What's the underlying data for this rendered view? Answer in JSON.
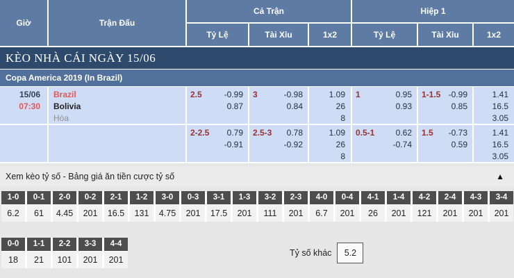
{
  "colors": {
    "header_blue": "#5e7ba4",
    "title_navy": "#2d4a6d",
    "league_blue": "#51709b",
    "row_light_blue": "#cfdcf5",
    "handicap_maroon": "#9c2f2f",
    "accent_red": "#e25757",
    "score_header_gray": "#4d4d4d"
  },
  "header": {
    "time": "Giờ",
    "match": "Trận Đấu",
    "full_time": "Cả Trận",
    "first_half": "Hiệp 1",
    "handicap": "Tỷ Lệ",
    "over_under": "Tài Xỉu",
    "one_x_two": "1x2"
  },
  "section": {
    "title": "KÈO NHÀ CÁI NGÀY 15/06",
    "league": "Copa America 2019 (In Brazil)"
  },
  "match": {
    "date": "15/06",
    "time": "07:30",
    "home": "Brazil",
    "away": "Bolivia",
    "draw": "Hòa"
  },
  "odds_rows": [
    {
      "ft_hdp": {
        "line": "2.5",
        "o1": "-0.99",
        "o2": "0.87"
      },
      "ft_ou": {
        "line": "3",
        "o1": "-0.98",
        "o2": "0.84"
      },
      "ft_1x2": {
        "v1": "1.09",
        "v2": "26",
        "v3": "8"
      },
      "h1_hdp": {
        "line": "1",
        "o1": "0.95",
        "o2": "0.93"
      },
      "h1_ou": {
        "line": "1-1.5",
        "o1": "-0.99",
        "o2": "0.85"
      },
      "h1_1x2": {
        "v1": "1.41",
        "v2": "16.5",
        "v3": "3.05"
      }
    },
    {
      "ft_hdp": {
        "line": "2-2.5",
        "o1": "0.79",
        "o2": "-0.91"
      },
      "ft_ou": {
        "line": "2.5-3",
        "o1": "0.78",
        "o2": "-0.92"
      },
      "ft_1x2": {
        "v1": "1.09",
        "v2": "26",
        "v3": "8"
      },
      "h1_hdp": {
        "line": "0.5-1",
        "o1": "0.62",
        "o2": "-0.74"
      },
      "h1_ou": {
        "line": "1.5",
        "o1": "-0.73",
        "o2": "0.59"
      },
      "h1_1x2": {
        "v1": "1.41",
        "v2": "16.5",
        "v3": "3.05"
      }
    }
  ],
  "score_section": {
    "title": "Xem kèo tỷ số - Bảng giá ăn tiền cược tỷ số",
    "collapse_icon": "▲",
    "row1": [
      {
        "score": "1-0",
        "odds": "6.2"
      },
      {
        "score": "0-1",
        "odds": "61"
      },
      {
        "score": "2-0",
        "odds": "4.45"
      },
      {
        "score": "0-2",
        "odds": "201"
      },
      {
        "score": "2-1",
        "odds": "16.5"
      },
      {
        "score": "1-2",
        "odds": "131"
      },
      {
        "score": "3-0",
        "odds": "4.75"
      },
      {
        "score": "0-3",
        "odds": "201"
      },
      {
        "score": "3-1",
        "odds": "17.5"
      },
      {
        "score": "1-3",
        "odds": "201"
      },
      {
        "score": "3-2",
        "odds": "111"
      },
      {
        "score": "2-3",
        "odds": "201"
      },
      {
        "score": "4-0",
        "odds": "6.7"
      },
      {
        "score": "0-4",
        "odds": "201"
      },
      {
        "score": "4-1",
        "odds": "26"
      },
      {
        "score": "1-4",
        "odds": "201"
      },
      {
        "score": "4-2",
        "odds": "121"
      },
      {
        "score": "2-4",
        "odds": "201"
      },
      {
        "score": "4-3",
        "odds": "201"
      },
      {
        "score": "3-4",
        "odds": "201"
      }
    ],
    "row2": [
      {
        "score": "0-0",
        "odds": "18"
      },
      {
        "score": "1-1",
        "odds": "21"
      },
      {
        "score": "2-2",
        "odds": "101"
      },
      {
        "score": "3-3",
        "odds": "201"
      },
      {
        "score": "4-4",
        "odds": "201"
      }
    ],
    "other_label": "Tỷ số khác",
    "other_value": "5.2"
  }
}
